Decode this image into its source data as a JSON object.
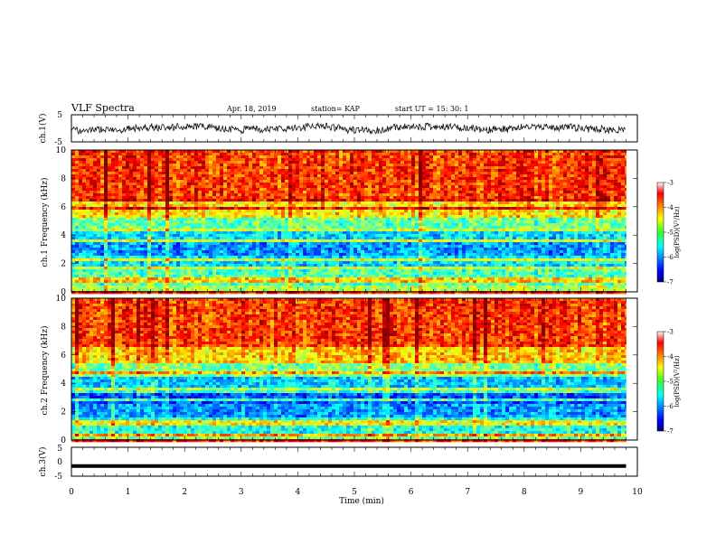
{
  "header": {
    "title": "VLF Spectra",
    "date": "Apr. 18, 2019",
    "station": "station= KAP",
    "start_ut": "start  UT =   15: 30: 1"
  },
  "chart_data": [
    {
      "type": "line",
      "panel": "ch1-waveform",
      "ylabel": "ch.1(V)",
      "ylim": [
        -5,
        5
      ],
      "ytick_labels": [
        "5",
        "-5"
      ],
      "xlim": [
        0,
        10
      ],
      "series": [
        {
          "x": [
            0,
            9.8
          ],
          "y": [
            0,
            0
          ]
        }
      ]
    },
    {
      "type": "heatmap",
      "panel": "ch1-spectrogram",
      "ylabel": "ch.1 Frequency (kHz)",
      "ylim": [
        0,
        10
      ],
      "ytick_labels": [
        "0",
        "2",
        "4",
        "6",
        "8",
        "10"
      ],
      "xlim": [
        0,
        9.8
      ],
      "colorbar": {
        "label": "log(PSD)(V²/Hz)",
        "range": [
          -7,
          -3
        ],
        "tick_labels": [
          "-3",
          "-4",
          "-5",
          "-6",
          "-7"
        ]
      },
      "band_profile": [
        {
          "f": [
            0.0,
            0.5
          ],
          "log_psd": -4.8
        },
        {
          "f": [
            0.5,
            1.5
          ],
          "log_psd": -5.2
        },
        {
          "f": [
            1.5,
            2.5
          ],
          "log_psd": -5.6
        },
        {
          "f": [
            2.5,
            3.5
          ],
          "log_psd": -5.9
        },
        {
          "f": [
            3.5,
            4.5
          ],
          "log_psd": -5.6
        },
        {
          "f": [
            4.5,
            5.2
          ],
          "log_psd": -5.1
        },
        {
          "f": [
            5.2,
            6.5
          ],
          "log_psd": -4.4
        },
        {
          "f": [
            6.5,
            10.0
          ],
          "log_psd": -3.7
        }
      ]
    },
    {
      "type": "heatmap",
      "panel": "ch2-spectrogram",
      "ylabel": "ch.2 Frequency (kHz)",
      "ylim": [
        0,
        10
      ],
      "ytick_labels": [
        "0",
        "2",
        "4",
        "6",
        "8",
        "10"
      ],
      "xlim": [
        0,
        9.8
      ],
      "colorbar": {
        "label": "log(PSD)(V²/Hz)",
        "range": [
          -7,
          -3
        ],
        "tick_labels": [
          "-3",
          "-4",
          "-5",
          "-6",
          "-7"
        ]
      },
      "band_profile": [
        {
          "f": [
            0.0,
            0.5
          ],
          "log_psd": -5.0
        },
        {
          "f": [
            0.5,
            1.5
          ],
          "log_psd": -5.4
        },
        {
          "f": [
            1.5,
            2.5
          ],
          "log_psd": -5.9
        },
        {
          "f": [
            2.5,
            3.5
          ],
          "log_psd": -6.2
        },
        {
          "f": [
            3.5,
            4.5
          ],
          "log_psd": -5.7
        },
        {
          "f": [
            4.5,
            5.5
          ],
          "log_psd": -5.0
        },
        {
          "f": [
            5.5,
            6.5
          ],
          "log_psd": -4.3
        },
        {
          "f": [
            6.5,
            10.0
          ],
          "log_psd": -3.7
        }
      ]
    },
    {
      "type": "line",
      "panel": "ch3-waveform",
      "ylabel": "ch.3(V)",
      "ylim": [
        -5,
        5
      ],
      "ytick_labels": [
        "5",
        "0",
        "-5"
      ],
      "xlim": [
        0,
        10
      ],
      "xlabel": "Time (min)",
      "xtick_labels": [
        "0",
        "1",
        "2",
        "3",
        "4",
        "5",
        "6",
        "7",
        "8",
        "9",
        "10"
      ],
      "series": [
        {
          "x": [
            0,
            9.8
          ],
          "y": [
            -1.5,
            -1.5
          ]
        }
      ]
    }
  ]
}
